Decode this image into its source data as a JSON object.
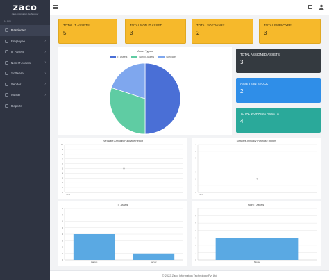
{
  "sidebar": {
    "brand": "zaco",
    "brand_sub": "Zaco Information Technology",
    "menu_title": "MAIN",
    "items": [
      {
        "label": "Dashboard",
        "icon": "dashboard-icon",
        "chevron": false
      },
      {
        "label": "Employee",
        "icon": "users-icon",
        "chevron": true
      },
      {
        "label": "IT Assets",
        "icon": "laptop-icon",
        "chevron": true
      },
      {
        "label": "Non IT Assets",
        "icon": "box-icon",
        "chevron": true
      },
      {
        "label": "Software",
        "icon": "software-icon",
        "chevron": true
      },
      {
        "label": "Vendor",
        "icon": "vendor-icon",
        "chevron": true
      },
      {
        "label": "Master",
        "icon": "master-icon",
        "chevron": true
      },
      {
        "label": "Reports",
        "icon": "reports-icon",
        "chevron": false
      }
    ]
  },
  "stats": [
    {
      "label": "TOTAL IT ASSETS",
      "value": "5"
    },
    {
      "label": "TOTAL NON IT ASSET",
      "value": "3"
    },
    {
      "label": "TOTAL SOFTWARE",
      "value": "2"
    },
    {
      "label": "TOTAL EMPLOYEE",
      "value": "3"
    }
  ],
  "side_stats": [
    {
      "label": "TOTAL ASSIGNED ASSETS",
      "value": "3"
    },
    {
      "label": "ASSETS IN STOCK",
      "value": "2"
    },
    {
      "label": "TOTAL WORKING ASSETS",
      "value": "4"
    }
  ],
  "colors": {
    "it": "#4a6fd6",
    "non_it": "#5fcca3",
    "software": "#7fa7ee",
    "bar": "#5aa9e3"
  },
  "chart_data": [
    {
      "type": "pie",
      "title": "Asset Types",
      "categories": [
        "IT Assets",
        "Non IT Assets",
        "Software"
      ],
      "values": [
        5,
        3,
        2
      ],
      "legend": "top"
    },
    {
      "type": "scatter",
      "title": "Hardware Annually Purchase Report",
      "x": [
        "2022"
      ],
      "values": [
        5
      ],
      "ylim": [
        0,
        10
      ],
      "yticks": [
        "0",
        "1",
        "2",
        "3",
        "4",
        "5",
        "6",
        "7",
        "8",
        "9",
        "10"
      ],
      "grid": true
    },
    {
      "type": "scatter",
      "title": "Software Annually Purchase Report",
      "x": [
        "2022"
      ],
      "values": [
        2
      ],
      "ylim": [
        0,
        7
      ],
      "yticks": [
        "0",
        "1",
        "2",
        "3",
        "4",
        "5",
        "6",
        "7"
      ],
      "grid": true
    },
    {
      "type": "bar",
      "title": "IT Assets",
      "categories": [
        "Laptop",
        "Server"
      ],
      "values": [
        4,
        1
      ],
      "ylim": [
        0,
        8
      ],
      "yticks": [
        "0",
        "1",
        "2",
        "3",
        "4",
        "5",
        "6",
        "7",
        "8"
      ],
      "grid": true
    },
    {
      "type": "bar",
      "title": "Non IT Assets",
      "categories": [
        "Mouse"
      ],
      "values": [
        3
      ],
      "ylim": [
        0,
        7
      ],
      "yticks": [
        "0",
        "1",
        "2",
        "3",
        "4",
        "5",
        "6",
        "7"
      ],
      "grid": true
    }
  ],
  "footer": "© 2022 Zaco Information Technology Pvt Ltd"
}
